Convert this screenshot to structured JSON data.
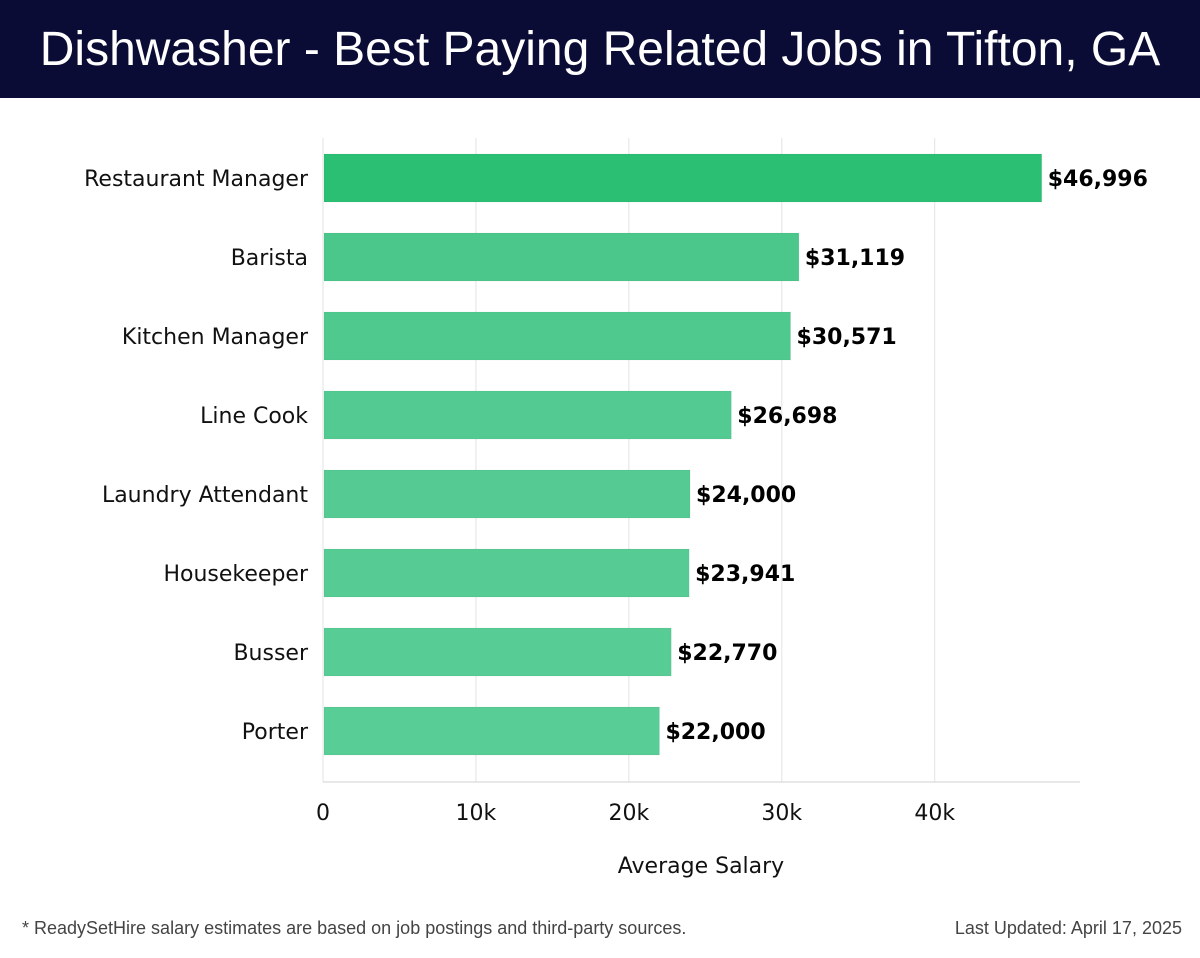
{
  "header": {
    "title": "Dishwasher - Best Paying Related Jobs in Tifton, GA"
  },
  "chart_data": {
    "type": "bar",
    "orientation": "horizontal",
    "title": "Dishwasher - Best Paying Related Jobs in Tifton, GA",
    "xlabel": "Average Salary",
    "ylabel": "",
    "categories": [
      "Restaurant Manager",
      "Barista",
      "Kitchen Manager",
      "Line Cook",
      "Laundry Attendant",
      "Housekeeper",
      "Busser",
      "Porter"
    ],
    "values": [
      46996,
      31119,
      30571,
      26698,
      24000,
      23941,
      22770,
      22000
    ],
    "value_labels": [
      "$46,996",
      "$31,119",
      "$30,571",
      "$26,698",
      "$24,000",
      "$23,941",
      "$22,770",
      "$22,000"
    ],
    "xlim": [
      0,
      49500
    ],
    "ticks": [
      0,
      10000,
      20000,
      30000,
      40000
    ],
    "tick_labels": [
      "0",
      "10k",
      "20k",
      "30k",
      "40k"
    ],
    "grid": "vertical",
    "bar_colors": [
      "#2bbf74",
      "#4cc78c",
      "#50c98f",
      "#53ca91",
      "#55cb93",
      "#56cb94",
      "#58cc95",
      "#59cd96"
    ],
    "grid_color": "#e3e3e3"
  },
  "footer": {
    "note": "* ReadySetHire salary estimates are based on job postings and third-party sources.",
    "updated": "Last Updated: April 17, 2025"
  }
}
